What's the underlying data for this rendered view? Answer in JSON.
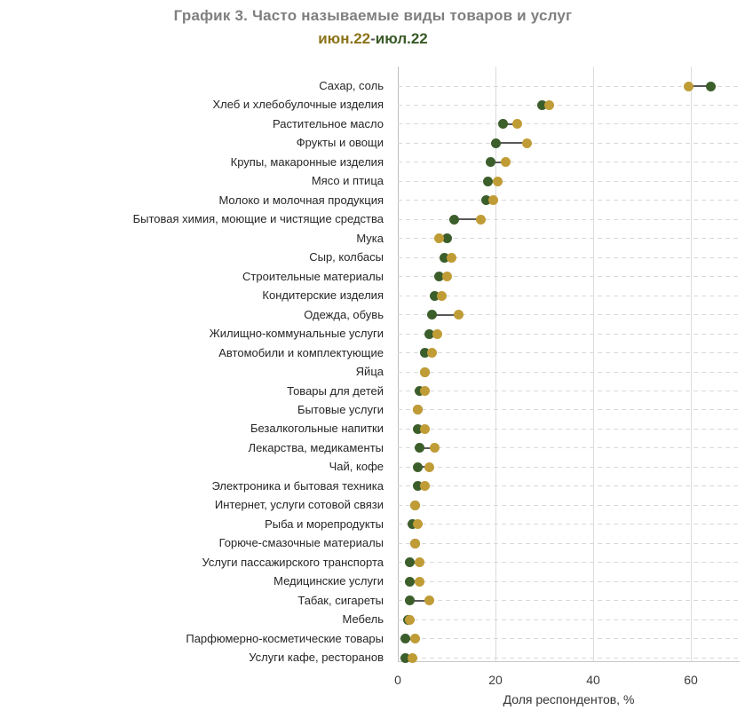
{
  "header": {
    "title": "График 3. Часто называемые виды товаров и услуг",
    "subtitle_june": "июн.22",
    "subtitle_sep": "-",
    "subtitle_july": "июл.22"
  },
  "colors": {
    "june_dot": "#c09c36",
    "july_dot": "#3c5e2b",
    "title_text": "#7f7f7f",
    "subtitle_june_text": "#8c7319",
    "subtitle_july_text": "#3a5a28",
    "gridline": "#d9d9d9",
    "axis_line": "#c0c0c0",
    "connector": "#595959"
  },
  "chart_data": {
    "type": "scatter",
    "variant": "dumbbell-dot-plot",
    "title": "График 3. Часто называемые виды товаров и услуг",
    "subtitle": "июн.22-июл.22",
    "xlabel": "Доля респондентов, %",
    "xlim": [
      0,
      70
    ],
    "xticks": [
      0,
      20,
      40,
      60
    ],
    "grid": true,
    "legend_position": "in-subtitle",
    "categories": [
      "Сахар, соль",
      "Хлеб и хлебобулочные изделия",
      "Растительное масло",
      "Фрукты и овощи",
      "Крупы, макаронные изделия",
      "Мясо и птица",
      "Молоко и молочная продукция",
      "Бытовая химия, моющие и чистящие средства",
      "Мука",
      "Сыр, колбасы",
      "Строительные материалы",
      "Кондитерские изделия",
      "Одежда, обувь",
      "Жилищно-коммунальные услуги",
      "Автомобили и комплектующие",
      "Яйца",
      "Товары для детей",
      "Бытовые услуги",
      "Безалкогольные напитки",
      "Лекарства, медикаменты",
      "Чай, кофе",
      "Электроника и бытовая техника",
      "Интернет, услуги сотовой связи",
      "Рыба и морепродукты",
      "Горюче-смазочные материалы",
      "Услуги пассажирского транспорта",
      "Медицинские услуги",
      "Табак, сигареты",
      "Мебель",
      "Парфюмерно-косметические товары",
      "Услуги кафе, ресторанов"
    ],
    "series": [
      {
        "name": "июн.22",
        "color": "#c09c36",
        "values": [
          59.5,
          31,
          24.5,
          26.5,
          22,
          20.5,
          19.5,
          17,
          8.5,
          11,
          10,
          9,
          12.5,
          8,
          7,
          5.5,
          5.5,
          4,
          5.5,
          7.5,
          6.5,
          5.5,
          3.5,
          4,
          3.5,
          4.5,
          4.5,
          6.5,
          2.5,
          3.5,
          3
        ]
      },
      {
        "name": "июл.22",
        "color": "#3c5e2b",
        "values": [
          64,
          29.5,
          21.5,
          20,
          19,
          18.5,
          18,
          11.5,
          10,
          9.5,
          8.5,
          7.5,
          7,
          6.5,
          5.5,
          5.5,
          4.5,
          4,
          4,
          4.5,
          4,
          4,
          3.5,
          3,
          3.5,
          2.5,
          2.5,
          2.5,
          2,
          1.5,
          1.5
        ]
      }
    ]
  }
}
